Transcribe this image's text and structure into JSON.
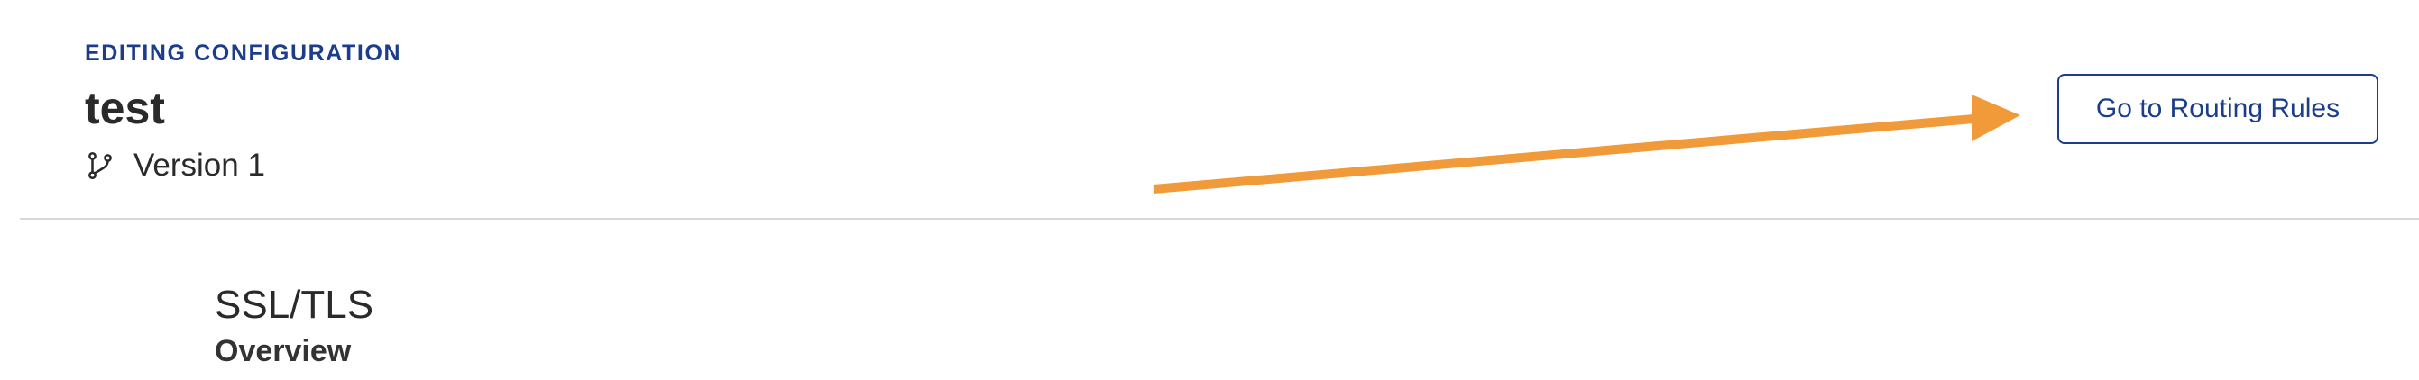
{
  "header": {
    "eyebrow": "EDITING CONFIGURATION",
    "title": "test",
    "version_icon": "git-branch-icon",
    "version_label": "Version 1"
  },
  "actions": {
    "routing_button_label": "Go to Routing Rules"
  },
  "annotation": {
    "arrow_color": "#f09a3a"
  },
  "section": {
    "heading": "SSL/TLS",
    "subheading": "Overview"
  },
  "colors": {
    "accent": "#1c3d8c",
    "text": "#2a2a2a",
    "divider": "#d9d9d9"
  }
}
